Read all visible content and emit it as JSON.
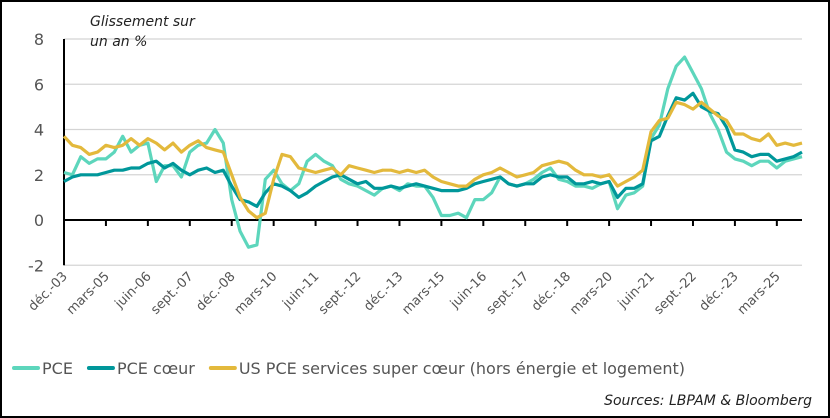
{
  "chart_data": {
    "type": "line",
    "title": "",
    "ylabel": "Glissement sur un an %",
    "ylabel_lines": [
      "Glissement sur",
      "un an %"
    ],
    "xlabel": "",
    "ylim": [
      -2,
      8
    ],
    "yticks": [
      -2,
      0,
      2,
      4,
      6,
      8
    ],
    "grid": true,
    "xlim": [
      "2003-12",
      "2025-12"
    ],
    "xtick_labels": [
      "déc.-03",
      "mars-05",
      "juin-06",
      "sept.-07",
      "déc.-08",
      "mars-10",
      "juin-11",
      "sept.-12",
      "déc.-13",
      "mars-15",
      "juin-16",
      "sept.-17",
      "déc.-18",
      "mars-20",
      "juin-21",
      "sept.-22",
      "déc.-23",
      "mars-25"
    ],
    "legend_position": "bottom",
    "x": [
      "2003-12",
      "2004-03",
      "2004-06",
      "2004-09",
      "2004-12",
      "2005-03",
      "2005-06",
      "2005-09",
      "2005-12",
      "2006-03",
      "2006-06",
      "2006-09",
      "2006-12",
      "2007-03",
      "2007-06",
      "2007-09",
      "2007-12",
      "2008-03",
      "2008-06",
      "2008-09",
      "2008-12",
      "2009-03",
      "2009-06",
      "2009-09",
      "2009-12",
      "2010-03",
      "2010-06",
      "2010-09",
      "2010-12",
      "2011-03",
      "2011-06",
      "2011-09",
      "2011-12",
      "2012-03",
      "2012-06",
      "2012-09",
      "2012-12",
      "2013-03",
      "2013-06",
      "2013-09",
      "2013-12",
      "2014-03",
      "2014-06",
      "2014-09",
      "2014-12",
      "2015-03",
      "2015-06",
      "2015-09",
      "2015-12",
      "2016-03",
      "2016-06",
      "2016-09",
      "2016-12",
      "2017-03",
      "2017-06",
      "2017-09",
      "2017-12",
      "2018-03",
      "2018-06",
      "2018-09",
      "2018-12",
      "2019-03",
      "2019-06",
      "2019-09",
      "2019-12",
      "2020-03",
      "2020-06",
      "2020-09",
      "2020-12",
      "2021-03",
      "2021-06",
      "2021-09",
      "2021-12",
      "2022-03",
      "2022-06",
      "2022-09",
      "2022-12",
      "2023-03",
      "2023-06",
      "2023-09",
      "2023-12",
      "2024-03",
      "2024-06",
      "2024-09",
      "2024-12",
      "2025-03",
      "2025-06",
      "2025-09",
      "2025-12"
    ],
    "series": [
      {
        "name": "PCE",
        "color": "#5dd6bc",
        "values": [
          2.1,
          2.0,
          2.8,
          2.5,
          2.7,
          2.7,
          3.0,
          3.7,
          3.0,
          3.3,
          3.4,
          1.7,
          2.4,
          2.4,
          1.9,
          3.0,
          3.3,
          3.4,
          4.0,
          3.4,
          0.9,
          -0.5,
          -1.2,
          -1.1,
          1.8,
          2.2,
          1.6,
          1.3,
          1.6,
          2.6,
          2.9,
          2.6,
          2.4,
          1.8,
          1.6,
          1.5,
          1.3,
          1.1,
          1.4,
          1.5,
          1.3,
          1.6,
          1.5,
          1.5,
          1.0,
          0.2,
          0.2,
          0.3,
          0.1,
          0.9,
          0.9,
          1.2,
          1.9,
          1.6,
          1.5,
          1.6,
          1.8,
          2.1,
          2.3,
          1.8,
          1.7,
          1.5,
          1.5,
          1.4,
          1.6,
          1.7,
          0.5,
          1.1,
          1.2,
          1.5,
          3.6,
          4.2,
          5.8,
          6.8,
          7.2,
          6.5,
          5.8,
          4.7,
          4.0,
          3.0,
          2.7,
          2.6,
          2.4,
          2.6,
          2.6,
          2.3,
          2.6,
          2.7,
          2.8
        ]
      },
      {
        "name": "PCE cœur",
        "color": "#00979a",
        "values": [
          1.7,
          1.9,
          2.0,
          2.0,
          2.0,
          2.1,
          2.2,
          2.2,
          2.3,
          2.3,
          2.5,
          2.6,
          2.3,
          2.5,
          2.2,
          2.0,
          2.2,
          2.3,
          2.1,
          2.2,
          1.5,
          0.9,
          0.8,
          0.6,
          1.2,
          1.6,
          1.5,
          1.3,
          1.0,
          1.2,
          1.5,
          1.7,
          1.9,
          2.0,
          1.8,
          1.6,
          1.7,
          1.4,
          1.4,
          1.5,
          1.4,
          1.5,
          1.6,
          1.5,
          1.4,
          1.3,
          1.3,
          1.3,
          1.4,
          1.6,
          1.7,
          1.8,
          1.9,
          1.6,
          1.5,
          1.6,
          1.6,
          1.9,
          2.0,
          1.9,
          1.9,
          1.6,
          1.6,
          1.7,
          1.6,
          1.7,
          1.0,
          1.4,
          1.4,
          1.6,
          3.5,
          3.7,
          4.6,
          5.4,
          5.3,
          5.6,
          5.0,
          4.8,
          4.7,
          4.1,
          3.1,
          3.0,
          2.8,
          2.9,
          2.9,
          2.6,
          2.7,
          2.8,
          3.0
        ]
      },
      {
        "name": "US PCE services super cœur (hors énergie et logement)",
        "color": "#e3b93c",
        "values": [
          3.7,
          3.3,
          3.2,
          2.9,
          3.0,
          3.3,
          3.2,
          3.3,
          3.6,
          3.3,
          3.6,
          3.4,
          3.1,
          3.4,
          3.0,
          3.3,
          3.5,
          3.2,
          3.1,
          3.0,
          2.0,
          1.0,
          0.4,
          0.1,
          0.3,
          1.8,
          2.9,
          2.8,
          2.3,
          2.2,
          2.1,
          2.2,
          2.3,
          2.0,
          2.4,
          2.3,
          2.2,
          2.1,
          2.2,
          2.2,
          2.1,
          2.2,
          2.1,
          2.2,
          1.9,
          1.7,
          1.6,
          1.5,
          1.5,
          1.8,
          2.0,
          2.1,
          2.3,
          2.1,
          1.9,
          2.0,
          2.1,
          2.4,
          2.5,
          2.6,
          2.5,
          2.2,
          2.0,
          2.0,
          1.9,
          2.0,
          1.5,
          1.7,
          1.9,
          2.2,
          3.9,
          4.4,
          4.5,
          5.2,
          5.1,
          4.9,
          5.2,
          4.9,
          4.6,
          4.4,
          3.8,
          3.8,
          3.6,
          3.5,
          3.8,
          3.3,
          3.4,
          3.3,
          3.4
        ]
      }
    ],
    "source": "Sources: LBPAM & Bloomberg"
  }
}
